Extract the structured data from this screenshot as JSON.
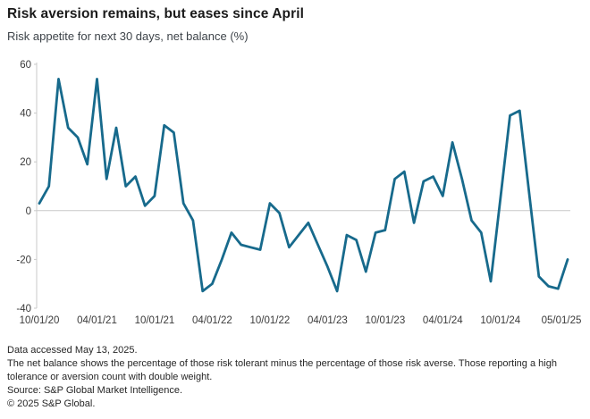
{
  "header": {
    "title": "Risk aversion remains, but eases since April",
    "subtitle": "Risk appetite for next 30 days, net balance (%)"
  },
  "chart_data": {
    "type": "line",
    "title": "Risk aversion remains, but eases since April",
    "subtitle": "Risk appetite for next 30 days, net balance (%)",
    "xlabel": "",
    "ylabel": "net balance (%)",
    "ylim": [
      -40,
      60
    ],
    "y_ticks": [
      60,
      40,
      20,
      0,
      -20,
      -40
    ],
    "grid": "zero-line-only",
    "legend": "none",
    "line_color": "#176a8c",
    "axis_color": "#c9c9c9",
    "tick_label_color": "#3a3a3a",
    "x": [
      "10/01/20",
      "11/01/20",
      "12/01/20",
      "01/01/21",
      "02/01/21",
      "03/01/21",
      "04/01/21",
      "05/01/21",
      "06/01/21",
      "07/01/21",
      "08/01/21",
      "09/01/21",
      "10/01/21",
      "11/01/21",
      "12/01/21",
      "01/01/22",
      "02/01/22",
      "03/01/22",
      "04/01/22",
      "05/01/22",
      "06/01/22",
      "07/01/22",
      "08/01/22",
      "09/01/22",
      "10/01/22",
      "11/01/22",
      "12/01/22",
      "01/01/23",
      "02/01/23",
      "03/01/23",
      "04/01/23",
      "05/01/23",
      "06/01/23",
      "07/01/23",
      "08/01/23",
      "09/01/23",
      "10/01/23",
      "11/01/23",
      "12/01/23",
      "01/01/24",
      "02/01/24",
      "03/01/24",
      "04/01/24",
      "05/01/24",
      "06/01/24",
      "07/01/24",
      "08/01/24",
      "09/01/24",
      "10/01/24",
      "11/01/24",
      "12/01/24",
      "01/01/25",
      "02/01/25",
      "03/01/25",
      "04/01/25",
      "05/01/25"
    ],
    "values": [
      3,
      10,
      54,
      34,
      30,
      19,
      54,
      13,
      34,
      10,
      14,
      2,
      6,
      35,
      32,
      3,
      -4,
      -33,
      -30,
      -20,
      -9,
      -14,
      -15,
      -16,
      3,
      -1,
      -15,
      -10,
      -5,
      -14,
      -23,
      -33,
      -10,
      -12,
      -25,
      -9,
      -8,
      13,
      16,
      -5,
      12,
      14,
      6,
      28,
      13,
      -4,
      -9,
      -29,
      5,
      39,
      41,
      7,
      -27,
      -31,
      -32,
      -20
    ],
    "x_tick_indices": [
      0,
      6,
      12,
      18,
      24,
      30,
      36,
      42,
      48,
      55
    ],
    "x_tick_labels": [
      "10/01/20",
      "04/01/21",
      "10/01/21",
      "04/01/22",
      "10/01/22",
      "04/01/23",
      "10/01/23",
      "04/01/24",
      "10/01/24",
      "05/01/25"
    ]
  },
  "footer": {
    "lines": [
      "Data accessed May 13, 2025.",
      "The net balance shows the percentage of those risk tolerant minus the percentage of those risk averse. Those reporting a high tolerance or aversion count with double weight.",
      "Source: S&P Global Market Intelligence.",
      "© 2025 S&P Global."
    ]
  }
}
